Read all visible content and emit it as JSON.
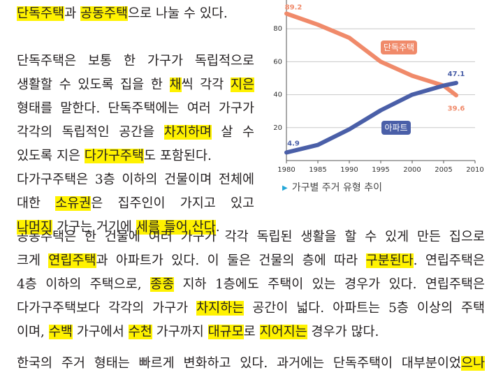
{
  "paragraph1": {
    "lines": [
      [
        {
          "t": "단독주택",
          "h": true
        },
        {
          "t": "과 ",
          "h": false
        },
        {
          "t": "공동주택",
          "h": true
        },
        {
          "t": "으로 나눌 수 있다.",
          "h": false
        }
      ],
      [],
      [
        {
          "t": "단독주택은 보통 한 가구가 독립적으로",
          "h": false
        }
      ],
      [
        {
          "t": "생활할 수 있도록 집을 한 ",
          "h": false
        },
        {
          "t": "채",
          "h": true
        },
        {
          "t": "씩 각각 ",
          "h": false
        },
        {
          "t": "지은",
          "h": true
        }
      ],
      [
        {
          "t": "형태를 말한다. 단독주택에는 여러 가구가",
          "h": false
        }
      ],
      [
        {
          "t": "각각의 독립적인 공간을 ",
          "h": false
        },
        {
          "t": "차지하며",
          "h": true
        },
        {
          "t": " 살 수",
          "h": false
        }
      ],
      [
        {
          "t": "있도록 지은 ",
          "h": false
        },
        {
          "t": "다가구주택",
          "h": true
        },
        {
          "t": "도 포함된다.",
          "h": false
        }
      ],
      [
        {
          "t": "다가구주택은 3층 이하의 건물이며 전체에",
          "h": false
        }
      ],
      [
        {
          "t": "대한 ",
          "h": false
        },
        {
          "t": "소유권",
          "h": true
        },
        {
          "t": "은 집주인이 가지고 있고",
          "h": false
        }
      ],
      [
        {
          "t": "나머지",
          "h": true
        },
        {
          "t": " 가구는 거기에 ",
          "h": false
        },
        {
          "t": "세를 들어 산다",
          "h": true
        },
        {
          "t": ".",
          "h": false
        }
      ]
    ]
  },
  "paragraph2": {
    "lines": [
      [
        {
          "t": "공동주택은 한 건물에 여러 가구가 각각 독립된 생활을 할 수 있게 만든 집으로",
          "h": false
        }
      ],
      [
        {
          "t": "크게 ",
          "h": false
        },
        {
          "t": "연립주택",
          "h": true
        },
        {
          "t": "과 아파트가 있다. 이 둘은 건물의 층에 따라 ",
          "h": false
        },
        {
          "t": "구분된다",
          "h": true
        },
        {
          "t": ". 연립주택은",
          "h": false
        }
      ],
      [
        {
          "t": "4층 이하의 주택으로, ",
          "h": false
        },
        {
          "t": "종종",
          "h": true
        },
        {
          "t": " 지하 1층에도 주택이 있는 경우가 있다. 연립주택은",
          "h": false
        }
      ],
      [
        {
          "t": "다가구주택보다 각각의 가구가 ",
          "h": false
        },
        {
          "t": "차지하는",
          "h": true
        },
        {
          "t": " 공간이 넓다. 아파트는 5층 이상의 주택",
          "h": false
        }
      ],
      [
        {
          "t": "이며, ",
          "h": false
        },
        {
          "t": "수백",
          "h": true
        },
        {
          "t": " 가구에서 ",
          "h": false
        },
        {
          "t": "수천",
          "h": true
        },
        {
          "t": " 가구까지 ",
          "h": false
        },
        {
          "t": "대규모",
          "h": true
        },
        {
          "t": "로 ",
          "h": false
        },
        {
          "t": "지어지는",
          "h": true
        },
        {
          "t": " 경우가 많다.",
          "h": false
        }
      ]
    ]
  },
  "paragraph3": {
    "lines": [
      [
        {
          "t": "한국의 주거 형태는 빠르게 변화하고 있다. 과거에는 단독주택이 대부분이었",
          "h": false
        },
        {
          "t": "으나",
          "h": true
        }
      ]
    ]
  },
  "highlight_color": "#fff200",
  "caption": "가구별 주거 유형 추이",
  "chart_data": {
    "type": "line",
    "x_ticks": [
      1980,
      1985,
      1990,
      1995,
      2000,
      2005,
      2010
    ],
    "y_ticks": [
      20,
      40,
      60,
      80
    ],
    "xlim": [
      1980,
      2010
    ],
    "ylim": [
      0,
      100
    ],
    "grid": true,
    "series": [
      {
        "name": "단독주택",
        "color": "#f08a6a",
        "x": [
          1980,
          1985,
          1990,
          1995,
          2000,
          2005,
          2007
        ],
        "values": [
          89.2,
          82.5,
          74.5,
          60.0,
          51.5,
          45.5,
          39.6
        ],
        "start_label": "89.2",
        "end_label": "39.6"
      },
      {
        "name": "아파트",
        "color": "#4a5fa8",
        "x": [
          1980,
          1985,
          1990,
          1995,
          2000,
          2005,
          2007
        ],
        "values": [
          4.9,
          9.5,
          19.0,
          30.5,
          40.0,
          45.5,
          47.1
        ],
        "start_label": "4.9",
        "end_label": "47.1"
      }
    ]
  }
}
